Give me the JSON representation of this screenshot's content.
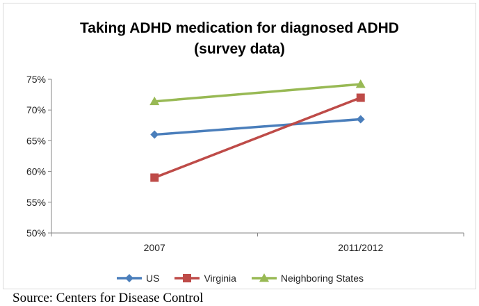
{
  "chart_data": {
    "type": "line",
    "title_lines": [
      "Taking ADHD medication for diagnosed ADHD",
      "(survey data)"
    ],
    "categories": [
      "2007",
      "2011/2012"
    ],
    "series": [
      {
        "name": "US",
        "values": [
          66,
          68.5
        ],
        "color": "#4a7ebb",
        "marker": "diamond"
      },
      {
        "name": "Virginia",
        "values": [
          59,
          72
        ],
        "color": "#be4b48",
        "marker": "square"
      },
      {
        "name": "Neighboring States",
        "values": [
          71.4,
          74.2
        ],
        "color": "#98b954",
        "marker": "triangle"
      }
    ],
    "ylim": [
      50,
      75
    ],
    "yticks": [
      50,
      55,
      60,
      65,
      70,
      75
    ],
    "ytick_labels": [
      "50%",
      "55%",
      "60%",
      "65%",
      "70%",
      "75%"
    ],
    "y_unit": "%",
    "grid": false,
    "legend_position": "bottom"
  },
  "source": "Source: Centers for Disease Control"
}
